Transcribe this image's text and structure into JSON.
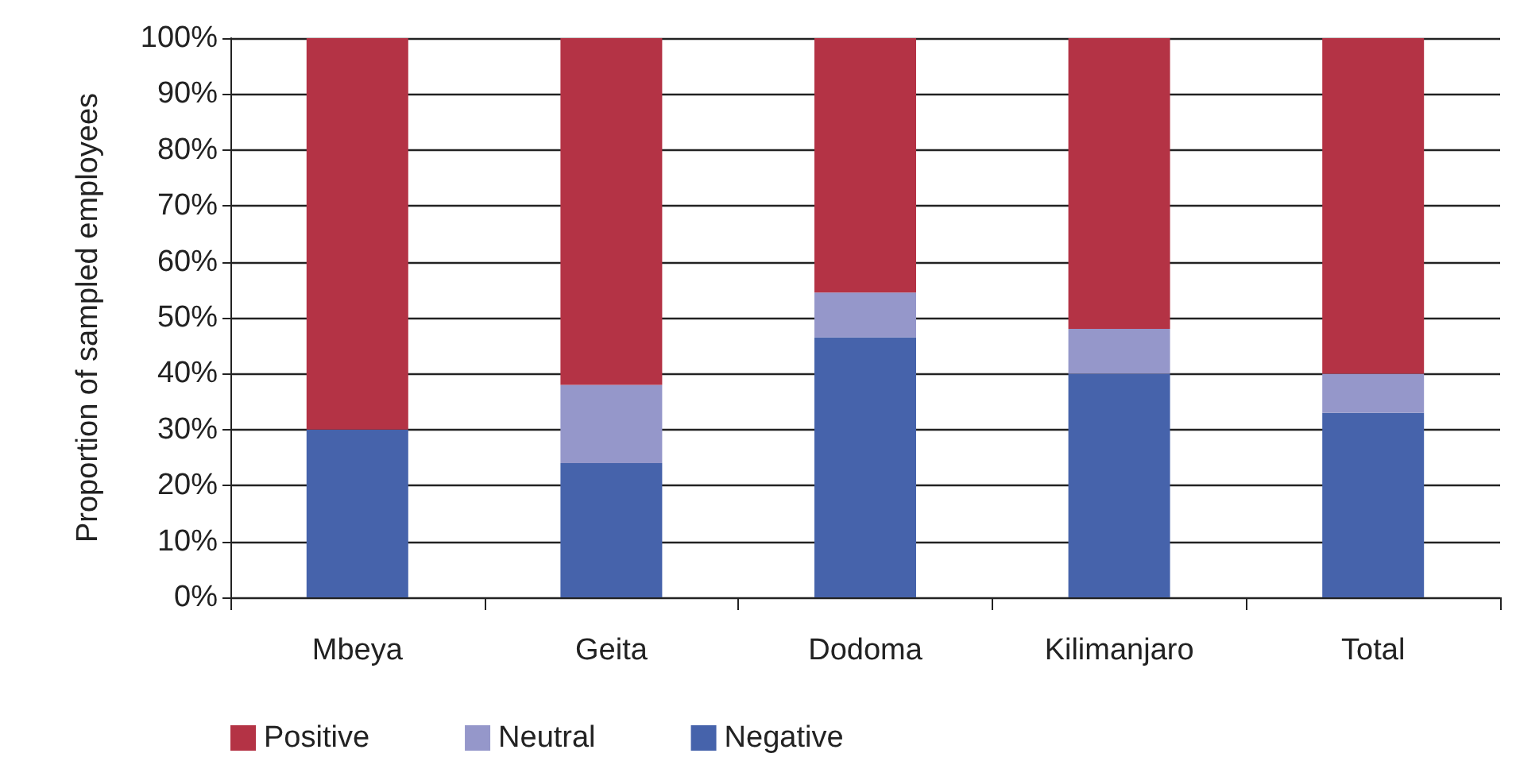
{
  "chart_data": {
    "type": "bar",
    "stacked": true,
    "ylabel": "Proportion of sampled employees",
    "categories": [
      "Mbeya",
      "Geita",
      "Dodoma",
      "Kilimanjaro",
      "Total"
    ],
    "series": [
      {
        "name": "Negative",
        "color": "#4663ab",
        "values": [
          30,
          24,
          46.5,
          40,
          33
        ]
      },
      {
        "name": "Neutral",
        "color": "#9597ca",
        "values": [
          0,
          14,
          8,
          8,
          7
        ]
      },
      {
        "name": "Positive",
        "color": "#b43345",
        "values": [
          70,
          62,
          45.5,
          52,
          60
        ]
      }
    ],
    "ylim": [
      0,
      100
    ],
    "yticks": [
      {
        "value": 0,
        "label": "0%"
      },
      {
        "value": 10,
        "label": "10%"
      },
      {
        "value": 20,
        "label": "20%"
      },
      {
        "value": 30,
        "label": "30%"
      },
      {
        "value": 40,
        "label": "40%"
      },
      {
        "value": 50,
        "label": "50%"
      },
      {
        "value": 60,
        "label": "60%"
      },
      {
        "value": 70,
        "label": "70%"
      },
      {
        "value": 80,
        "label": "80%"
      },
      {
        "value": 90,
        "label": "90%"
      },
      {
        "value": 100,
        "label": "100%"
      }
    ],
    "grid": "y",
    "legend": "bottom left"
  }
}
